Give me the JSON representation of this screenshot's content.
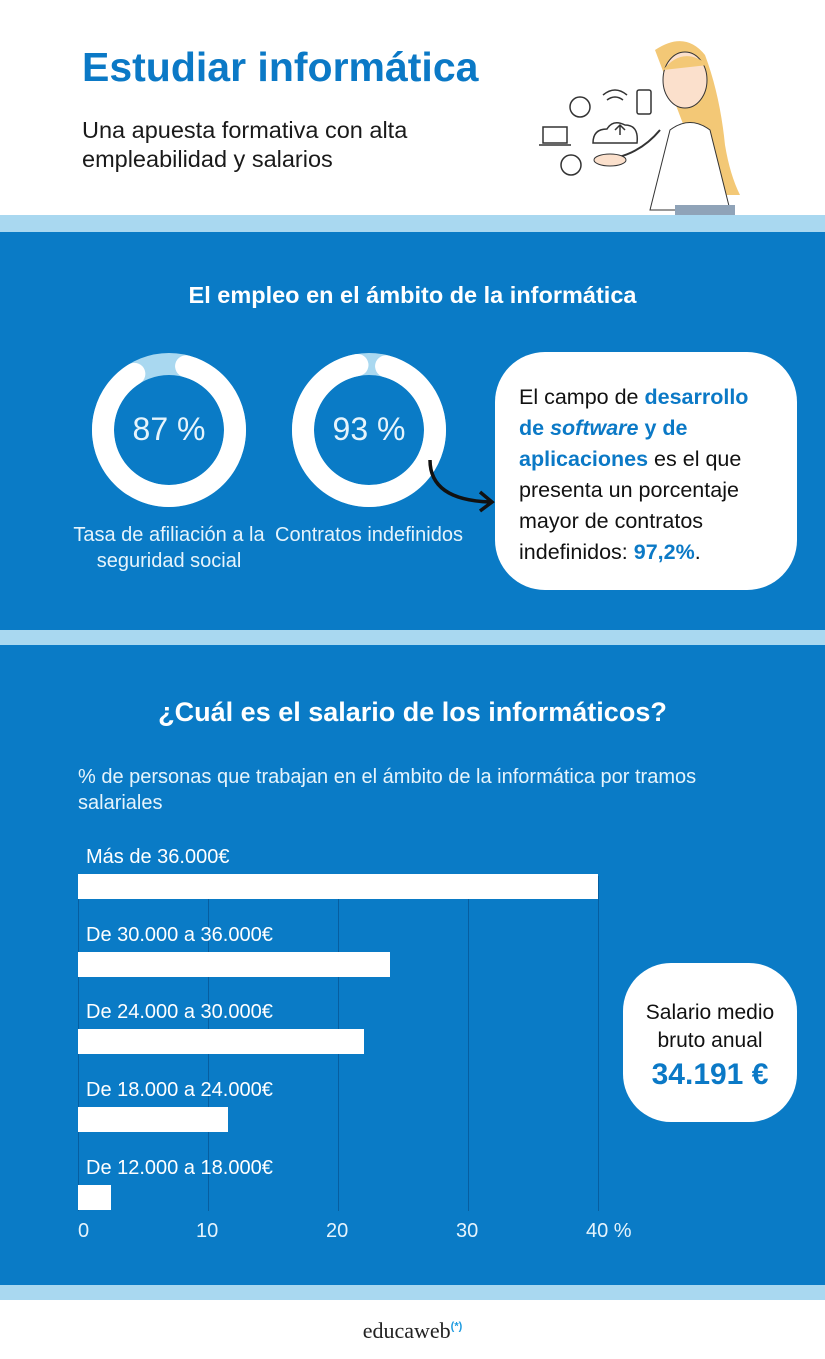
{
  "header": {
    "title": "Estudiar informática",
    "subtitle": "Una apuesta formativa con alta empleabilidad y salarios"
  },
  "colors": {
    "brand_blue": "#0a7bc6",
    "light_blue": "#a9d8f0",
    "accent_text": "#0b79c6"
  },
  "employment": {
    "title": "El empleo en el ámbito de la informática",
    "rings": [
      {
        "value_label": "87 %",
        "value": 87,
        "label": "Tasa de afiliación a la seguridad social"
      },
      {
        "value_label": "93 %",
        "value": 93,
        "label": "Contratos indefinidos"
      }
    ],
    "callout": {
      "p1": "El campo de ",
      "b1": "desarrollo de ",
      "i1": "software",
      "b2": " y de aplicaciones",
      "p2": " es el que presenta un porcentaje mayor de contratos indefinidos: ",
      "b3": "97,2%",
      "p3": "."
    }
  },
  "salary": {
    "title": "¿Cuál es el salario de los informáticos?",
    "box": {
      "line1": "Salario medio",
      "line2": "bruto anual",
      "value": "34.191 €"
    }
  },
  "chart_data": {
    "type": "bar",
    "orientation": "horizontal",
    "title": "% de personas que trabajan en el ámbito de la informática por tramos salariales",
    "categories": [
      "Más de 36.000€",
      "De 30.000 a 36.000€",
      "De 24.000 a 30.000€",
      "De 18.000 a 24.000€",
      "De 12.000 a 18.000€"
    ],
    "values": [
      40,
      24,
      22,
      11.5,
      2.5
    ],
    "xlim": [
      0,
      40
    ],
    "ticks": [
      "0",
      "10",
      "20",
      "30",
      "40 %"
    ],
    "tick_values": [
      0,
      10,
      20,
      30,
      40
    ],
    "grid": true,
    "bar_color": "#ffffff"
  },
  "footer": {
    "logo": "educaweb",
    "logo_mark": "(*)"
  }
}
